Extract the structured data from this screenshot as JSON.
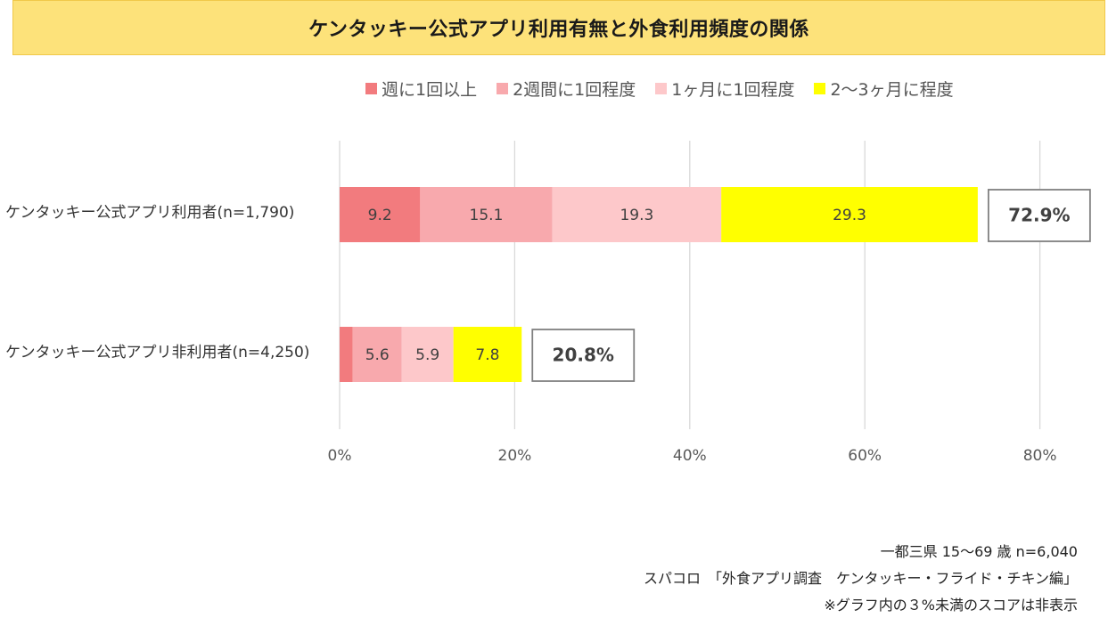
{
  "title": "ケンタッキー公式アプリ利用有無と外食利用頻度の関係",
  "chart_data": {
    "type": "bar",
    "orientation": "horizontal",
    "stacked": true,
    "categories": [
      "ケンタッキー公式アプリ利用者(n=1,790)",
      "ケンタッキー公式アプリ非利用者(n=4,250)"
    ],
    "series": [
      {
        "name": "週に1回以上",
        "color": "#f27b7e",
        "values": [
          9.2,
          1.5
        ],
        "labels": [
          "9.2",
          ""
        ]
      },
      {
        "name": "2週間に1回程度",
        "color": "#f8a9ad",
        "values": [
          15.1,
          5.6
        ],
        "labels": [
          "15.1",
          "5.6"
        ]
      },
      {
        "name": "1ヶ月に1回程度",
        "color": "#fdc8ca",
        "values": [
          19.3,
          5.9
        ],
        "labels": [
          "19.3",
          "5.9"
        ]
      },
      {
        "name": "2～3ヶ月に程度",
        "color": "#ffff00",
        "values": [
          29.3,
          7.8
        ],
        "labels": [
          "29.3",
          "7.8"
        ]
      }
    ],
    "totals": [
      "72.9%",
      "20.8%"
    ],
    "xlim": [
      0,
      80
    ],
    "xticks": [
      0,
      20,
      40,
      60,
      80
    ],
    "xtick_labels": [
      "0%",
      "20%",
      "40%",
      "60%",
      "80%"
    ],
    "grid": true,
    "legend_position": "top"
  },
  "footnotes": [
    "一都三県 15～69 歳 n=6,040",
    "スパコロ　「外食アプリ調査　ケンタッキー・フライド・チキン編」",
    "※グラフ内の３%未満のスコアは非表示"
  ]
}
